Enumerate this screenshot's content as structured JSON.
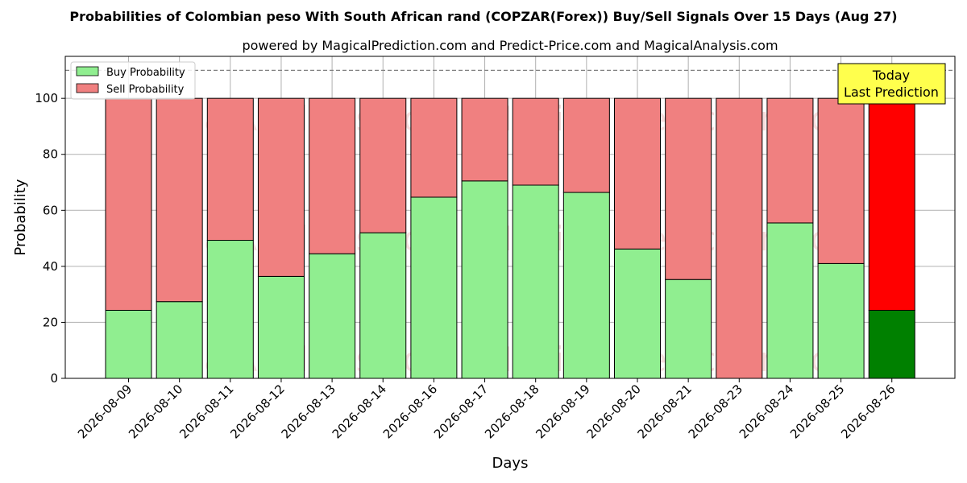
{
  "chart_data": {
    "type": "bar",
    "stacked": true,
    "title": "Probabilities of Colombian peso With South African rand (COPZAR(Forex)) Buy/Sell Signals Over 15 Days (Aug 27)",
    "subtitle": "powered by MagicalPrediction.com and Predict-Price.com and MagicalAnalysis.com",
    "xlabel": "Days",
    "ylabel": "Probability",
    "ylim": [
      0,
      115
    ],
    "yticks": [
      0,
      20,
      40,
      60,
      80,
      100
    ],
    "grid": true,
    "reference_line": 110,
    "categories": [
      "2026-08-09",
      "2026-08-10",
      "2026-08-11",
      "2026-08-12",
      "2026-08-13",
      "2026-08-14",
      "2026-08-16",
      "2026-08-17",
      "2026-08-18",
      "2026-08-19",
      "2026-08-20",
      "2026-08-21",
      "2026-08-23",
      "2026-08-24",
      "2026-08-25",
      "2026-08-26"
    ],
    "series": [
      {
        "name": "Buy Probability",
        "color": "#90ee90",
        "highlight_color": "#008000",
        "values": [
          24.3,
          27.4,
          49.3,
          36.4,
          44.5,
          52.0,
          64.7,
          70.5,
          69.0,
          66.4,
          46.2,
          35.3,
          0,
          55.5,
          41.0,
          24.3
        ]
      },
      {
        "name": "Sell Probability",
        "color": "#f08080",
        "highlight_color": "#ff0000",
        "values": [
          75.7,
          72.6,
          50.7,
          63.6,
          55.5,
          48.0,
          35.3,
          29.5,
          31.0,
          33.6,
          53.8,
          64.7,
          100,
          44.5,
          59.0,
          75.7
        ]
      }
    ],
    "highlight_index": 15,
    "legend_position": "top-left",
    "annotation": {
      "line1": "Today",
      "line2": "Last Prediction",
      "background": "#ffff4d"
    },
    "watermarks": [
      "MagicalAnalysis.com",
      "MagicalPrediction.com"
    ]
  }
}
